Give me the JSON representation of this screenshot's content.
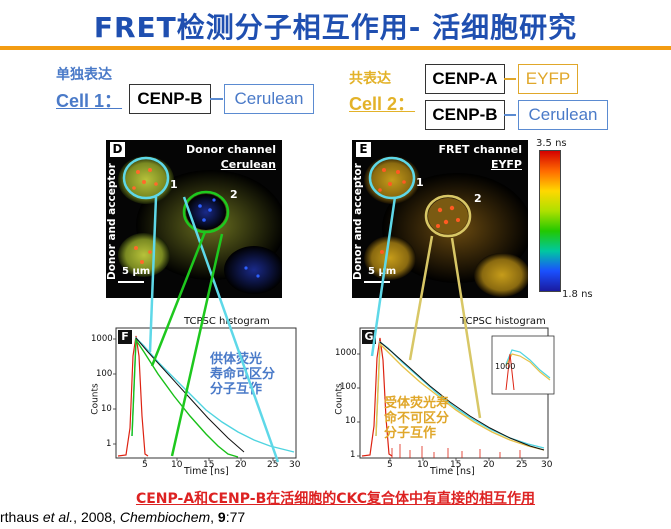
{
  "title": "FRET检测分子相互作用- 活细胞研究",
  "cell1": {
    "note": "单独表达",
    "label": "Cell 1：",
    "protein": "CENP-B",
    "fluor": "Cerulean"
  },
  "cell2": {
    "note": "共表达",
    "label": "Cell 2：",
    "proteins": [
      {
        "protein": "CENP-A",
        "fluor": "EYFP"
      },
      {
        "protein": "CENP-B",
        "fluor": "Cerulean"
      }
    ]
  },
  "panelD": {
    "letter": "D",
    "channel": "Donor channel",
    "fluor": "Cerulean",
    "side": "Donor and acceptor",
    "scale": "5 μm",
    "markers": [
      "1",
      "2"
    ]
  },
  "panelE": {
    "letter": "E",
    "channel": "FRET channel",
    "fluor": "EYFP",
    "side": "Donor and acceptor",
    "scale": "5 μm",
    "markers": [
      "1",
      "2"
    ]
  },
  "colorbar": {
    "top": "3.5 ns",
    "bottom": "1.8 ns"
  },
  "chartF": {
    "letter": "F",
    "title": "TCPSC histogram",
    "ylabel": "Counts",
    "xlabel": "Time [ns]",
    "xticks": [
      "5",
      "10",
      "15",
      "20",
      "25",
      "30"
    ],
    "yticks": [
      "1",
      "10",
      "100",
      "1000"
    ],
    "annotation": [
      "供体荧光",
      "寿命可区分",
      "分子互作"
    ]
  },
  "chartG": {
    "letter": "G",
    "title": "TCPSC histogram",
    "ylabel": "Counts",
    "xlabel": "Time [ns]",
    "xticks": [
      "5",
      "10",
      "15",
      "20",
      "25",
      "30"
    ],
    "yticks": [
      "1",
      "10",
      "100",
      "1000"
    ],
    "inset_ytick": "1000",
    "annotation": [
      "受体荧光寿",
      "命不可区分",
      "分子互作"
    ]
  },
  "conclusion": "CENP-A和CENP-B在活细胞的CKC复合体中有直接的相互作用",
  "citation": {
    "authors": "rthaus ",
    "etal": "et al.",
    "rest": ", 2008, ",
    "journal": "Chembiochem",
    "sep": ", ",
    "volume": "9",
    "pages": ":77"
  },
  "colors": {
    "title": "#1f4fb0",
    "accent_blue": "#4a7ac8",
    "accent_gold": "#e0a72a",
    "rule": "#f39c12",
    "conclusion": "#d22222",
    "cyan": "#5ed8e8",
    "green": "#1ec81e",
    "yellow_ring": "#d8c766"
  }
}
